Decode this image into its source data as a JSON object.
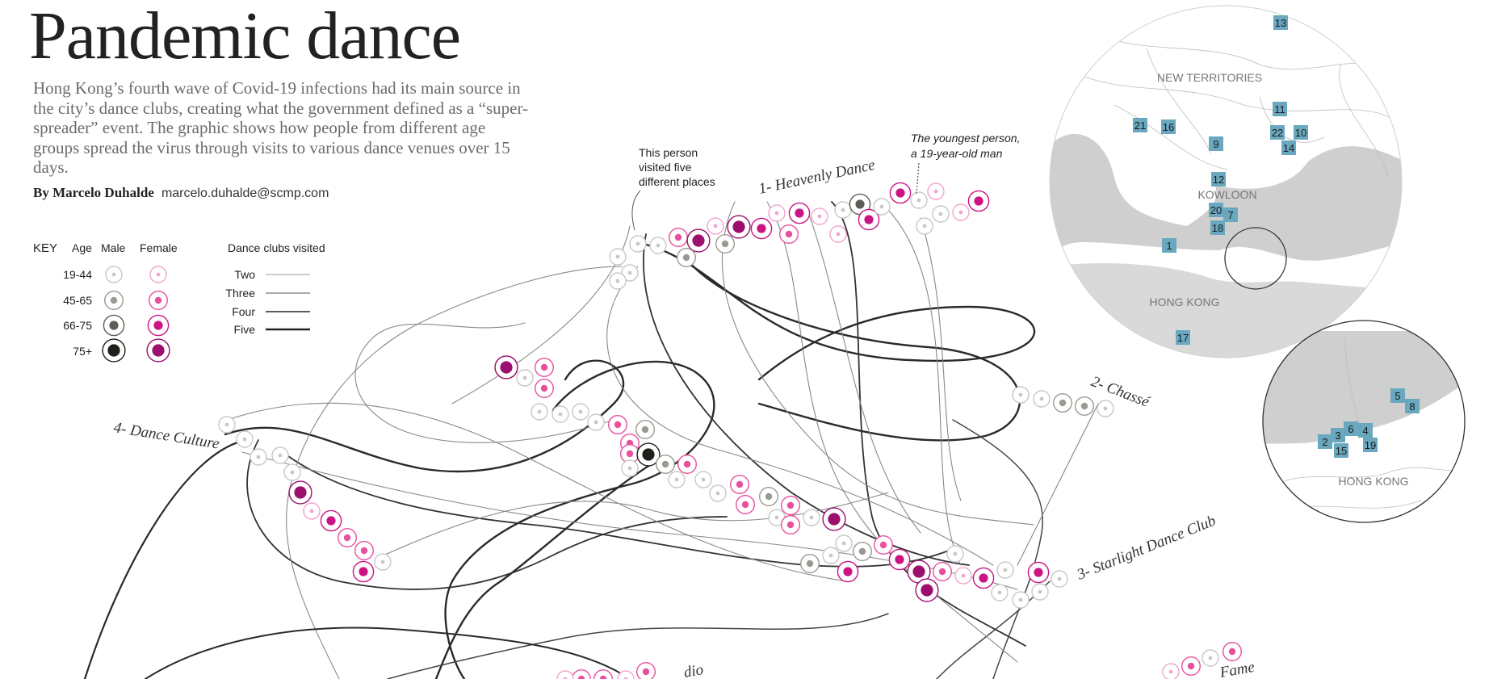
{
  "title": "Pandemic dance",
  "dek": "Hong Kong’s fourth wave of Covid-19 infections had its main source in the city’s dance clubs, creating what the government defined as a “super-spreader” event. The graphic shows how people from different age groups spread the virus through visits to various dance venues over 15 days.",
  "byline": {
    "by": "By Marcelo Duhalde",
    "email": "marcelo.duhalde@scmp.com"
  },
  "key": {
    "title": "KEY",
    "age_header": "Age",
    "male_header": "Male",
    "female_header": "Female",
    "age_groups": [
      "19-44",
      "45-65",
      "66-75",
      "75+"
    ],
    "clubs_header": "Dance clubs visited",
    "clubs_levels": [
      "Two",
      "Three",
      "Four",
      "Five"
    ]
  },
  "colors": {
    "male": [
      "#c8c8c8",
      "#9a9a92",
      "#5e5e58",
      "#1f1f1b"
    ],
    "female": [
      "#f1a6cf",
      "#e8509f",
      "#cc1383",
      "#9c0f6e"
    ],
    "map_land": "#cfcfcf",
    "badge": "#6aa8bf"
  },
  "venues": {
    "v1": "1- Heavenly Dance",
    "v2": "2- Chassé",
    "v3": "3- Starlight Dance Club",
    "v4": "4- Dance Culture",
    "v5": "dio",
    "v6": "Fame"
  },
  "annotations": {
    "five_places": [
      "This person",
      "visited five",
      "different places"
    ],
    "youngest": [
      "The youngest person,",
      "a 19-year-old man"
    ]
  },
  "map1": {
    "areas": {
      "new_territories": "NEW TERRITORIES",
      "kowloon": "KOWLOON",
      "hong_kong": "HONG KONG"
    },
    "badges": [
      "13",
      "11",
      "21",
      "16",
      "22",
      "10",
      "9",
      "14",
      "12",
      "20",
      "7",
      "18",
      "1",
      "17"
    ]
  },
  "map2": {
    "area": "HONG KONG",
    "badges": [
      "5",
      "8",
      "6",
      "3",
      "4",
      "2",
      "19",
      "15"
    ]
  }
}
